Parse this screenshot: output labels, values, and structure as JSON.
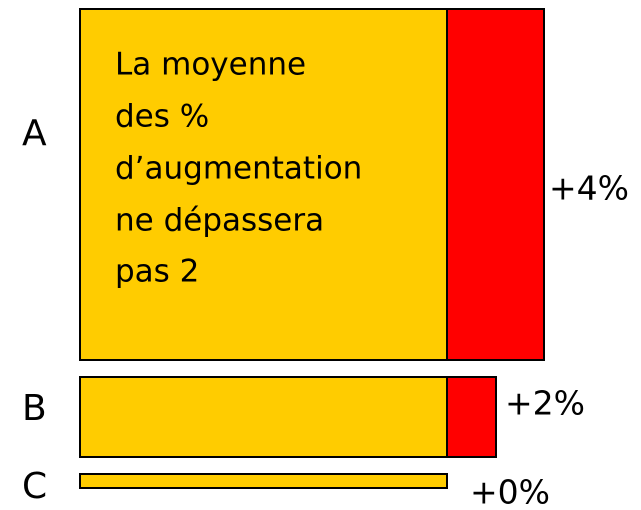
{
  "rows": [
    {
      "label": "A",
      "increase": "+4%"
    },
    {
      "label": "B",
      "increase": "+2%"
    },
    {
      "label": "C",
      "increase": "+0%"
    }
  ],
  "note": {
    "lines": [
      "La moyenne",
      "des %",
      "d’augmentation",
      "ne dépassera",
      "pas 2"
    ]
  }
}
